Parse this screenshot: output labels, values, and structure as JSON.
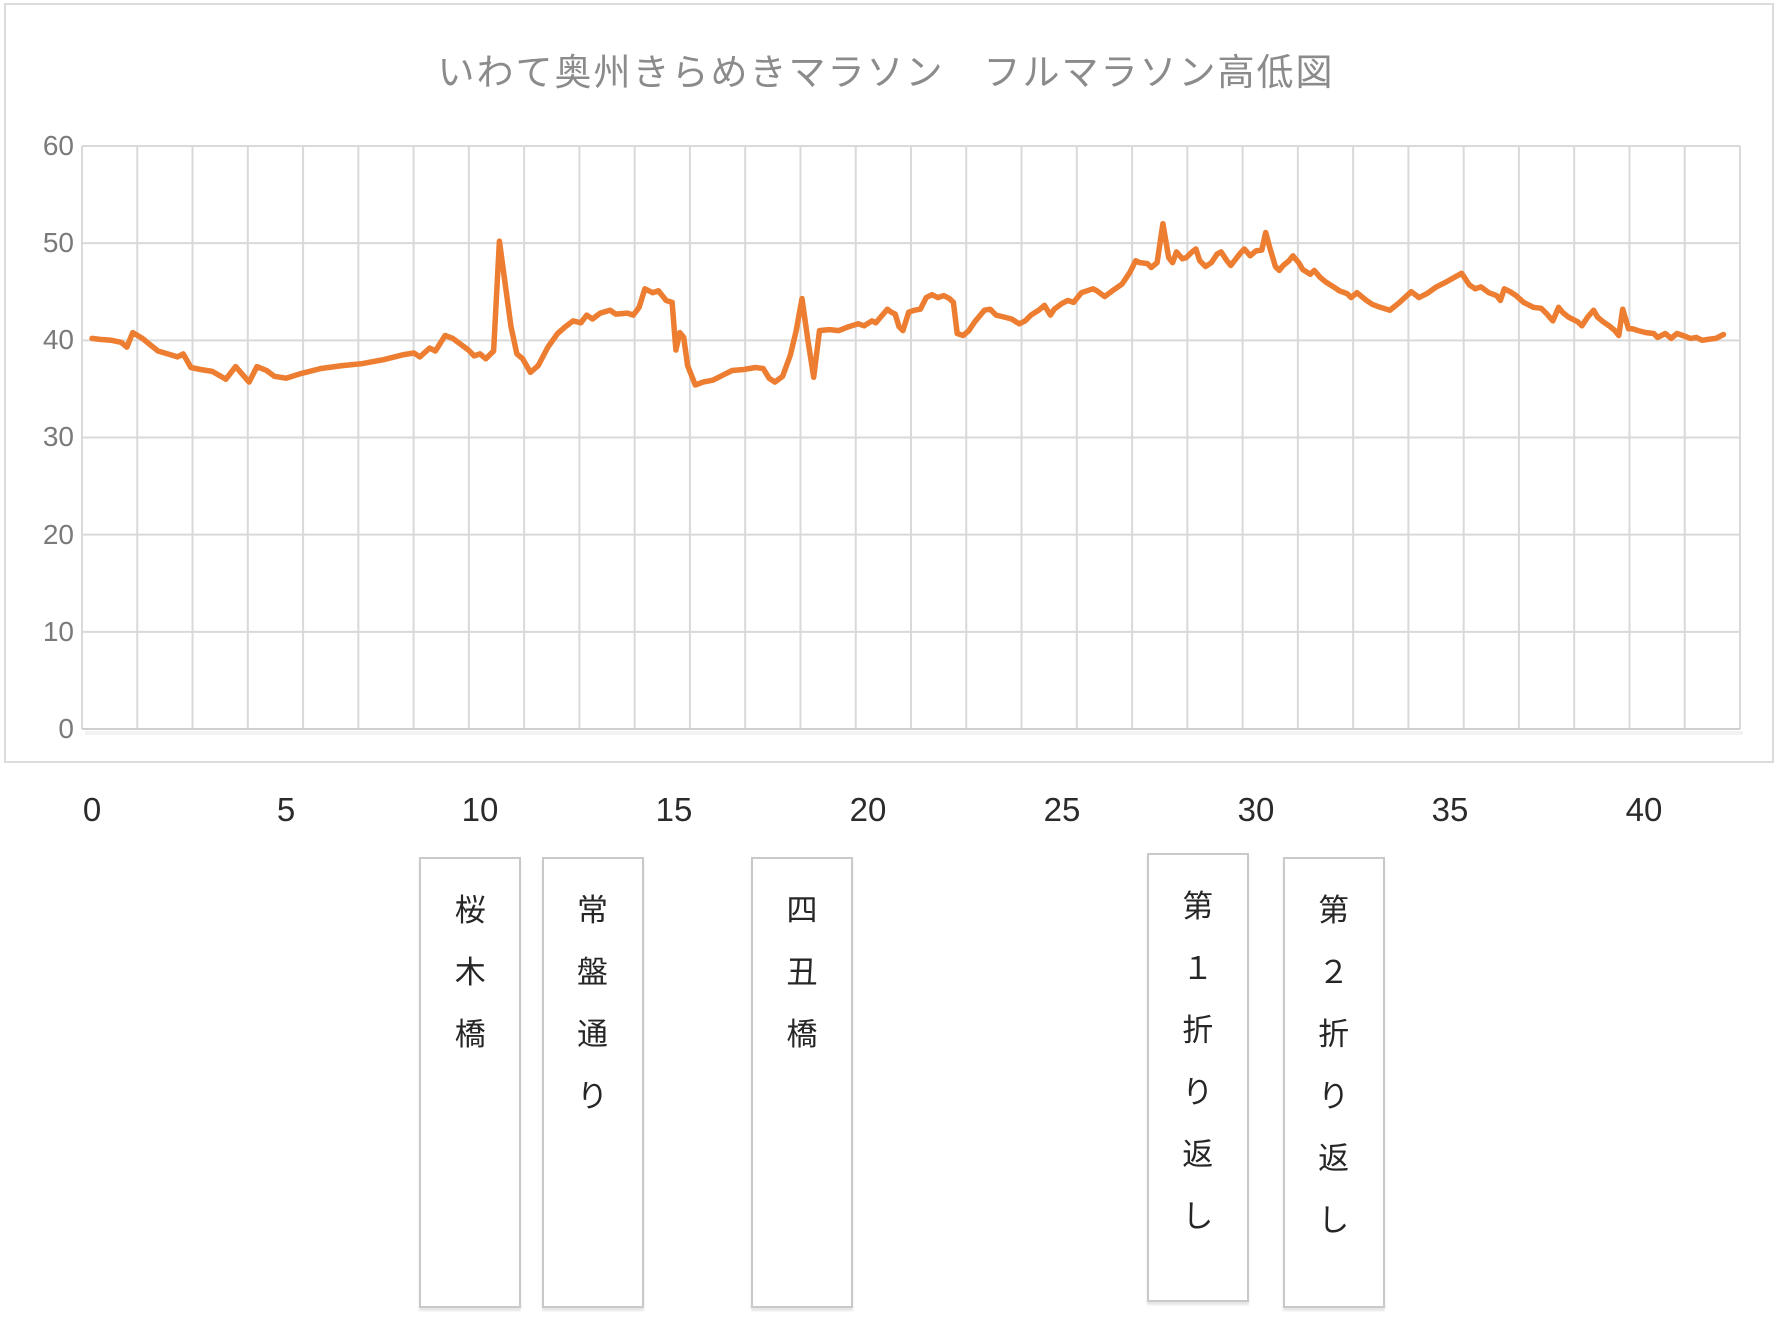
{
  "colors": {
    "line": "#ED7D31",
    "gridline": "#D9D9D9",
    "axis_line": "#CFCFCF",
    "panel_border": "#DCDCDC",
    "title_text": "#8B8B8B",
    "y_tick_text": "#7A7A7A",
    "x_tick_text": "#2B2B2B",
    "landmark_border": "#C9C9C9",
    "landmark_text": "#262626"
  },
  "chart_data": {
    "type": "line",
    "title": "いわて奥州きらめきマラソン　フルマラソン高低図",
    "xlabel": "",
    "ylabel": "",
    "x_unit": "km",
    "y_unit": "m",
    "xlim": [
      0,
      42.2
    ],
    "ylim": [
      0,
      60
    ],
    "xticks": [
      0,
      5,
      10,
      15,
      20,
      25,
      30,
      35,
      40
    ],
    "yticks": [
      0,
      10,
      20,
      30,
      40,
      50,
      60
    ],
    "grid": "both",
    "legend": "none",
    "series": [
      {
        "name": "elevation-profile",
        "color": "#ED7D31",
        "points": [
          [
            0,
            40.2
          ],
          [
            0.2,
            40.1
          ],
          [
            0.5,
            40.0
          ],
          [
            0.75,
            39.8
          ],
          [
            0.9,
            39.3
          ],
          [
            1.05,
            40.8
          ],
          [
            1.3,
            40.2
          ],
          [
            1.45,
            39.7
          ],
          [
            1.7,
            38.9
          ],
          [
            1.95,
            38.6
          ],
          [
            2.2,
            38.3
          ],
          [
            2.35,
            38.6
          ],
          [
            2.55,
            37.2
          ],
          [
            2.8,
            37.0
          ],
          [
            3.1,
            36.8
          ],
          [
            3.45,
            36.0
          ],
          [
            3.7,
            37.3
          ],
          [
            4.05,
            35.7
          ],
          [
            4.25,
            37.3
          ],
          [
            4.5,
            36.9
          ],
          [
            4.7,
            36.3
          ],
          [
            5.0,
            36.1
          ],
          [
            5.4,
            36.6
          ],
          [
            5.9,
            37.1
          ],
          [
            6.45,
            37.4
          ],
          [
            6.95,
            37.6
          ],
          [
            7.5,
            38.0
          ],
          [
            8.0,
            38.5
          ],
          [
            8.3,
            38.7
          ],
          [
            8.45,
            38.3
          ],
          [
            8.7,
            39.2
          ],
          [
            8.85,
            38.9
          ],
          [
            9.1,
            40.5
          ],
          [
            9.3,
            40.2
          ],
          [
            9.5,
            39.6
          ],
          [
            9.7,
            39.0
          ],
          [
            9.85,
            38.4
          ],
          [
            10.0,
            38.6
          ],
          [
            10.15,
            38.1
          ],
          [
            10.35,
            38.9
          ],
          [
            10.5,
            50.2
          ],
          [
            10.8,
            41.4
          ],
          [
            10.95,
            38.6
          ],
          [
            11.1,
            38.1
          ],
          [
            11.3,
            36.7
          ],
          [
            11.5,
            37.4
          ],
          [
            11.75,
            39.3
          ],
          [
            12.0,
            40.7
          ],
          [
            12.2,
            41.4
          ],
          [
            12.4,
            42.0
          ],
          [
            12.6,
            41.8
          ],
          [
            12.75,
            42.6
          ],
          [
            12.9,
            42.2
          ],
          [
            13.1,
            42.8
          ],
          [
            13.35,
            43.1
          ],
          [
            13.5,
            42.7
          ],
          [
            13.8,
            42.8
          ],
          [
            13.95,
            42.6
          ],
          [
            14.1,
            43.4
          ],
          [
            14.25,
            45.3
          ],
          [
            14.45,
            44.9
          ],
          [
            14.6,
            45.1
          ],
          [
            14.8,
            44.1
          ],
          [
            14.95,
            43.9
          ],
          [
            15.05,
            39.0
          ],
          [
            15.15,
            40.8
          ],
          [
            15.25,
            40.3
          ],
          [
            15.35,
            37.4
          ],
          [
            15.55,
            35.4
          ],
          [
            15.75,
            35.7
          ],
          [
            16.0,
            35.9
          ],
          [
            16.25,
            36.4
          ],
          [
            16.5,
            36.9
          ],
          [
            16.8,
            37.0
          ],
          [
            17.1,
            37.2
          ],
          [
            17.3,
            37.1
          ],
          [
            17.45,
            36.1
          ],
          [
            17.6,
            35.7
          ],
          [
            17.8,
            36.3
          ],
          [
            18.0,
            38.5
          ],
          [
            18.15,
            41.0
          ],
          [
            18.3,
            44.3
          ],
          [
            18.45,
            40.0
          ],
          [
            18.6,
            36.2
          ],
          [
            18.75,
            41.0
          ],
          [
            19.0,
            41.1
          ],
          [
            19.25,
            41.0
          ],
          [
            19.5,
            41.4
          ],
          [
            19.75,
            41.7
          ],
          [
            19.9,
            41.5
          ],
          [
            20.1,
            42.0
          ],
          [
            20.2,
            41.8
          ],
          [
            20.35,
            42.5
          ],
          [
            20.5,
            43.2
          ],
          [
            20.6,
            42.9
          ],
          [
            20.7,
            42.7
          ],
          [
            20.8,
            41.4
          ],
          [
            20.9,
            41.0
          ],
          [
            21.05,
            42.9
          ],
          [
            21.2,
            43.1
          ],
          [
            21.35,
            43.2
          ],
          [
            21.5,
            44.4
          ],
          [
            21.65,
            44.7
          ],
          [
            21.8,
            44.4
          ],
          [
            21.95,
            44.6
          ],
          [
            22.1,
            44.3
          ],
          [
            22.2,
            43.9
          ],
          [
            22.3,
            40.7
          ],
          [
            22.45,
            40.5
          ],
          [
            22.6,
            41.0
          ],
          [
            22.75,
            41.9
          ],
          [
            23.0,
            43.1
          ],
          [
            23.15,
            43.2
          ],
          [
            23.3,
            42.6
          ],
          [
            23.5,
            42.4
          ],
          [
            23.7,
            42.2
          ],
          [
            23.9,
            41.7
          ],
          [
            24.05,
            42.0
          ],
          [
            24.2,
            42.6
          ],
          [
            24.4,
            43.1
          ],
          [
            24.55,
            43.6
          ],
          [
            24.7,
            42.6
          ],
          [
            24.8,
            43.2
          ],
          [
            25.0,
            43.8
          ],
          [
            25.15,
            44.1
          ],
          [
            25.3,
            43.9
          ],
          [
            25.5,
            44.9
          ],
          [
            25.8,
            45.3
          ],
          [
            25.9,
            45.1
          ],
          [
            26.1,
            44.5
          ],
          [
            26.3,
            45.1
          ],
          [
            26.55,
            45.8
          ],
          [
            26.75,
            47.0
          ],
          [
            26.9,
            48.2
          ],
          [
            27.0,
            48.0
          ],
          [
            27.2,
            47.9
          ],
          [
            27.3,
            47.5
          ],
          [
            27.45,
            48.0
          ],
          [
            27.6,
            52.0
          ],
          [
            27.75,
            48.5
          ],
          [
            27.85,
            48.0
          ],
          [
            27.95,
            49.1
          ],
          [
            28.1,
            48.4
          ],
          [
            28.2,
            48.5
          ],
          [
            28.35,
            49.1
          ],
          [
            28.45,
            49.4
          ],
          [
            28.55,
            48.2
          ],
          [
            28.7,
            47.6
          ],
          [
            28.85,
            48.0
          ],
          [
            29.0,
            48.9
          ],
          [
            29.1,
            49.1
          ],
          [
            29.25,
            48.2
          ],
          [
            29.35,
            47.7
          ],
          [
            29.6,
            49.0
          ],
          [
            29.7,
            49.4
          ],
          [
            29.85,
            48.7
          ],
          [
            30.0,
            49.2
          ],
          [
            30.15,
            49.3
          ],
          [
            30.25,
            51.1
          ],
          [
            30.35,
            49.6
          ],
          [
            30.5,
            47.6
          ],
          [
            30.6,
            47.2
          ],
          [
            30.7,
            47.7
          ],
          [
            30.85,
            48.2
          ],
          [
            30.95,
            48.7
          ],
          [
            31.1,
            48.0
          ],
          [
            31.2,
            47.3
          ],
          [
            31.4,
            46.8
          ],
          [
            31.5,
            47.2
          ],
          [
            31.65,
            46.5
          ],
          [
            31.8,
            46.0
          ],
          [
            32.0,
            45.5
          ],
          [
            32.15,
            45.1
          ],
          [
            32.35,
            44.8
          ],
          [
            32.45,
            44.4
          ],
          [
            32.6,
            44.9
          ],
          [
            32.85,
            44.1
          ],
          [
            33.0,
            43.7
          ],
          [
            33.2,
            43.4
          ],
          [
            33.45,
            43.1
          ],
          [
            33.7,
            43.9
          ],
          [
            34.0,
            45.0
          ],
          [
            34.2,
            44.4
          ],
          [
            34.4,
            44.8
          ],
          [
            34.65,
            45.5
          ],
          [
            34.9,
            46.0
          ],
          [
            35.3,
            46.9
          ],
          [
            35.5,
            45.7
          ],
          [
            35.65,
            45.3
          ],
          [
            35.8,
            45.5
          ],
          [
            36.0,
            44.9
          ],
          [
            36.2,
            44.6
          ],
          [
            36.3,
            44.1
          ],
          [
            36.4,
            45.3
          ],
          [
            36.55,
            45.0
          ],
          [
            36.7,
            44.6
          ],
          [
            36.9,
            43.9
          ],
          [
            37.15,
            43.4
          ],
          [
            37.35,
            43.3
          ],
          [
            37.5,
            42.7
          ],
          [
            37.65,
            42.0
          ],
          [
            37.8,
            43.4
          ],
          [
            37.9,
            42.9
          ],
          [
            38.05,
            42.4
          ],
          [
            38.3,
            41.9
          ],
          [
            38.4,
            41.5
          ],
          [
            38.55,
            42.4
          ],
          [
            38.7,
            43.1
          ],
          [
            38.8,
            42.4
          ],
          [
            38.95,
            41.9
          ],
          [
            39.1,
            41.5
          ],
          [
            39.25,
            41.0
          ],
          [
            39.35,
            40.5
          ],
          [
            39.45,
            43.2
          ],
          [
            39.6,
            41.2
          ],
          [
            39.7,
            41.2
          ],
          [
            39.85,
            41.0
          ],
          [
            40.05,
            40.8
          ],
          [
            40.25,
            40.7
          ],
          [
            40.35,
            40.3
          ],
          [
            40.55,
            40.7
          ],
          [
            40.7,
            40.2
          ],
          [
            40.85,
            40.7
          ],
          [
            41.0,
            40.5
          ],
          [
            41.2,
            40.2
          ],
          [
            41.35,
            40.3
          ],
          [
            41.5,
            40.0
          ],
          [
            41.65,
            40.1
          ],
          [
            41.85,
            40.2
          ],
          [
            42.05,
            40.6
          ]
        ]
      }
    ],
    "annotations": [
      {
        "label": "桜木橋",
        "km": 9.75
      },
      {
        "label": "常盤通り",
        "km": 12.9
      },
      {
        "label": "四丑橋",
        "km": 18.3
      },
      {
        "label": "第１折り返し",
        "km": 28.5
      },
      {
        "label": "第２折り返し",
        "km": 32.0
      }
    ]
  }
}
